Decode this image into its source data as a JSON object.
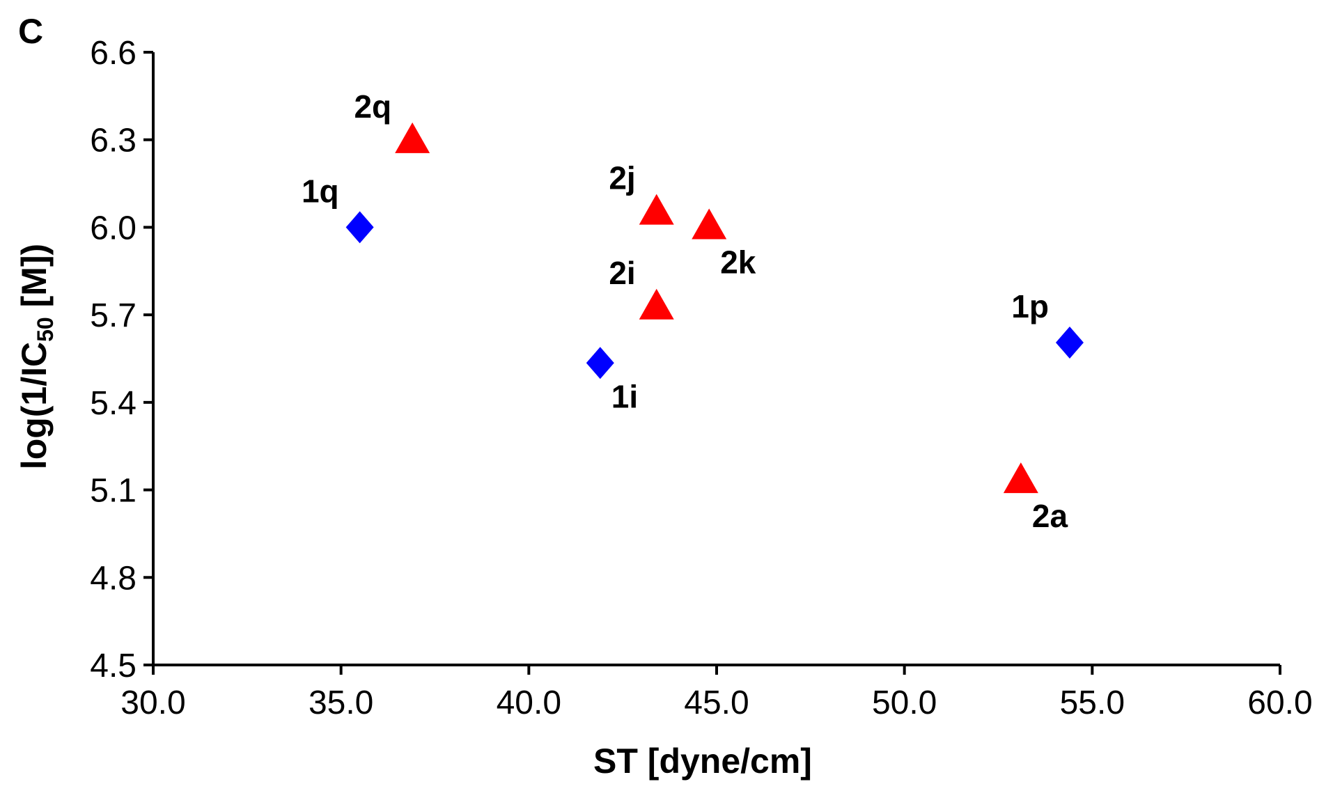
{
  "chart_data": {
    "type": "scatter",
    "panel_label": "C",
    "title": "",
    "xlabel": "ST [dyne/cm]",
    "ylabel_main": "log(1/IC",
    "ylabel_sub": "50",
    "ylabel_tail": " [M])",
    "xlim": [
      30.0,
      60.0
    ],
    "ylim": [
      4.5,
      6.6
    ],
    "xticks": [
      30.0,
      35.0,
      40.0,
      45.0,
      50.0,
      55.0,
      60.0
    ],
    "yticks": [
      4.5,
      4.8,
      5.1,
      5.4,
      5.7,
      6.0,
      6.3,
      6.6
    ],
    "xtick_labels": [
      "30.0",
      "35.0",
      "40.0",
      "45.0",
      "50.0",
      "55.0",
      "60.0"
    ],
    "ytick_labels": [
      "4.5",
      "4.8",
      "5.1",
      "5.4",
      "5.7",
      "6.0",
      "6.3",
      "6.6"
    ],
    "grid": false,
    "series": [
      {
        "name": "series-1",
        "marker": "diamond",
        "color": "#0000ff",
        "points": [
          {
            "x": 35.5,
            "y": 6.0,
            "label": "1q",
            "label_pos": "upper-left"
          },
          {
            "x": 41.9,
            "y": 5.535,
            "label": "1i",
            "label_pos": "lower-right"
          },
          {
            "x": 54.4,
            "y": 5.605,
            "label": "1p",
            "label_pos": "upper-left"
          }
        ]
      },
      {
        "name": "series-2",
        "marker": "triangle",
        "color": "#ff0000",
        "points": [
          {
            "x": 36.9,
            "y": 6.29,
            "label": "2q",
            "label_pos": "upper-left"
          },
          {
            "x": 43.4,
            "y": 6.045,
            "label": "2j",
            "label_pos": "upper-left"
          },
          {
            "x": 44.8,
            "y": 5.995,
            "label": "2k",
            "label_pos": "lower-right"
          },
          {
            "x": 43.4,
            "y": 5.72,
            "label": "2i",
            "label_pos": "upper-left"
          },
          {
            "x": 53.1,
            "y": 5.125,
            "label": "2a",
            "label_pos": "lower-right"
          }
        ]
      }
    ]
  }
}
